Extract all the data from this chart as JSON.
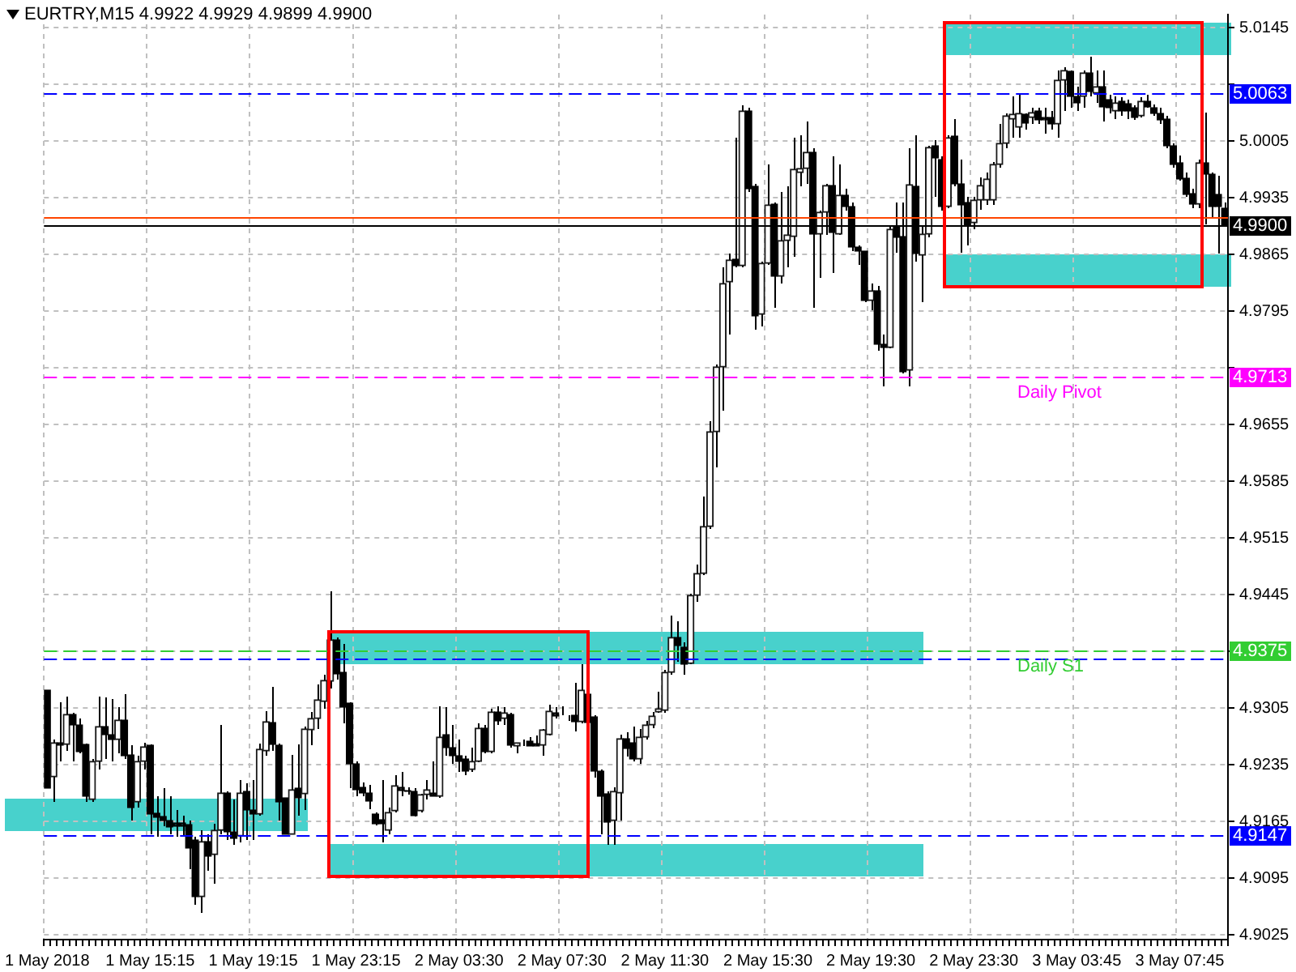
{
  "chart_data": {
    "type": "candlestick",
    "title": "EURTRY,M15 4.9922 4.9929 4.9899 4.9900",
    "categories": [
      "1 May 2018",
      null,
      null,
      null,
      null,
      null,
      null,
      null,
      null,
      null,
      null,
      null,
      null,
      null,
      null,
      null,
      "1 May 15:15",
      null,
      null,
      null,
      null,
      null,
      null,
      null,
      null,
      null,
      null,
      null,
      null,
      null,
      null,
      null,
      "1 May 19:15",
      null,
      null,
      null,
      null,
      null,
      null,
      null,
      null,
      null,
      null,
      null,
      null,
      null,
      null,
      null,
      "1 May 23:15",
      null,
      null,
      null,
      null,
      null,
      null,
      null,
      null,
      null,
      null,
      null,
      null,
      null,
      null,
      null,
      "2 May 03:30",
      null,
      null,
      null,
      null,
      null,
      null,
      null,
      null,
      null,
      null,
      null,
      null,
      null,
      null,
      null,
      "2 May 07:30",
      null,
      null,
      null,
      null,
      null,
      null,
      null,
      null,
      null,
      null,
      null,
      null,
      null,
      null,
      null,
      "2 May 11:30",
      null,
      null,
      null,
      null,
      null,
      null,
      null,
      null,
      null,
      null,
      null,
      null,
      null,
      null,
      null,
      "2 May 15:30",
      null,
      null,
      null,
      null,
      null,
      null,
      null,
      null,
      null,
      null,
      null,
      null,
      null,
      null,
      null,
      "2 May 19:30",
      null,
      null,
      null,
      null,
      null,
      null,
      null,
      null,
      null,
      null,
      null,
      null,
      null,
      null,
      null,
      "2 May 23:30",
      null,
      null,
      null,
      null,
      null,
      null,
      null,
      null,
      null,
      null,
      null,
      null,
      null,
      null,
      null,
      "3 May 03:45",
      null,
      null,
      null,
      null,
      null,
      null,
      null,
      null,
      null,
      null,
      null,
      null,
      null,
      null,
      null,
      "3 May 07:45",
      null,
      null,
      null,
      null,
      null,
      null,
      null
    ],
    "ohlc": [
      [
        4.9327,
        4.9327,
        4.9206,
        4.9206
      ],
      [
        4.922,
        4.9266,
        4.9189,
        4.9262
      ],
      [
        4.9262,
        4.9312,
        4.9239,
        4.9259
      ],
      [
        4.926,
        4.9319,
        4.9252,
        4.9297
      ],
      [
        4.9297,
        4.9299,
        4.9239,
        4.9284
      ],
      [
        4.9284,
        4.9292,
        4.9249,
        4.9251
      ],
      [
        4.926,
        4.9261,
        4.9189,
        4.9196
      ],
      [
        4.9192,
        4.9242,
        4.9189,
        4.9239
      ],
      [
        4.9239,
        4.9319,
        4.9229,
        4.9282
      ],
      [
        4.9282,
        4.9318,
        4.9242,
        4.9272
      ],
      [
        4.9272,
        4.9316,
        4.9239,
        4.9266
      ],
      [
        4.9266,
        4.9306,
        4.9249,
        4.929
      ],
      [
        4.929,
        4.9322,
        4.9242,
        4.9246
      ],
      [
        4.9247,
        4.9259,
        4.9166,
        4.9182
      ],
      [
        4.9189,
        4.9246,
        4.9182,
        4.9239
      ],
      [
        4.9239,
        4.9262,
        4.9229,
        4.9257
      ],
      [
        4.9259,
        4.926,
        4.9149,
        4.9174
      ],
      [
        4.9175,
        4.9196,
        4.9146,
        4.917
      ],
      [
        4.9171,
        4.9206,
        4.9159,
        4.9166
      ],
      [
        4.9166,
        4.9196,
        4.9149,
        4.9158
      ],
      [
        4.9163,
        4.9179,
        4.9146,
        4.9159
      ],
      [
        4.9163,
        4.9172,
        4.9146,
        4.9159
      ],
      [
        4.9161,
        4.9166,
        4.9106,
        4.9132
      ],
      [
        4.9142,
        4.9146,
        4.9062,
        4.9072
      ],
      [
        4.9072,
        4.9154,
        4.9052,
        4.914
      ],
      [
        4.914,
        4.9149,
        4.9104,
        4.9122
      ],
      [
        4.9124,
        4.9162,
        4.9088,
        4.9154
      ],
      [
        4.9154,
        4.9284,
        4.9149,
        4.92
      ],
      [
        4.92,
        4.9202,
        4.9142,
        4.9152
      ],
      [
        4.9152,
        4.9192,
        4.9136,
        4.9144
      ],
      [
        4.9147,
        4.9216,
        4.9139,
        4.92
      ],
      [
        4.9202,
        4.9212,
        4.9142,
        4.9179
      ],
      [
        4.9179,
        4.9216,
        4.9142,
        4.9174
      ],
      [
        4.9174,
        4.9261,
        4.9172,
        4.9254
      ],
      [
        4.9252,
        4.9301,
        4.9246,
        4.9288
      ],
      [
        4.9287,
        4.9331,
        4.9252,
        4.926
      ],
      [
        4.9259,
        4.9261,
        4.9166,
        4.9189
      ],
      [
        4.9194,
        4.9194,
        4.9149,
        4.9149
      ],
      [
        4.9149,
        4.9247,
        4.9149,
        4.9204
      ],
      [
        4.9206,
        4.926,
        4.9172,
        4.9194
      ],
      [
        4.9199,
        4.9282,
        4.9179,
        4.9279
      ],
      [
        4.9278,
        4.93,
        4.9259,
        4.9292
      ],
      [
        4.9292,
        4.9334,
        4.9279,
        4.9315
      ],
      [
        4.9313,
        4.9346,
        4.9304,
        4.9339
      ],
      [
        4.9338,
        4.9449,
        4.9329,
        4.9389
      ],
      [
        4.9389,
        4.9392,
        4.934,
        4.9347
      ],
      [
        4.9349,
        4.9384,
        4.9286,
        4.9306
      ],
      [
        4.9311,
        4.9312,
        4.9206,
        4.9236
      ],
      [
        4.9236,
        4.9239,
        4.9196,
        4.9204
      ],
      [
        4.9207,
        4.9213,
        4.9196,
        4.92
      ],
      [
        4.92,
        4.921,
        4.918,
        4.919
      ],
      [
        4.9174,
        4.9176,
        4.916,
        4.9162
      ],
      [
        4.9167,
        4.9216,
        4.9139,
        4.9162
      ],
      [
        4.9154,
        4.9182,
        4.9149,
        4.9176
      ],
      [
        4.9178,
        4.9222,
        4.9176,
        4.9209
      ],
      [
        4.9207,
        4.9226,
        4.9196,
        4.9203
      ],
      [
        4.9203,
        4.9207,
        4.9198,
        4.9202
      ],
      [
        4.9202,
        4.9206,
        4.9171,
        4.9172
      ],
      [
        4.9178,
        4.9199,
        4.9176,
        4.9198
      ],
      [
        4.9198,
        4.9216,
        4.9192,
        4.9204
      ],
      [
        4.92,
        4.9239,
        4.9196,
        4.9196
      ],
      [
        4.9196,
        4.9307,
        4.9194,
        4.9269
      ],
      [
        4.9272,
        4.9306,
        4.9246,
        4.9256
      ],
      [
        4.9256,
        4.9284,
        4.9236,
        4.9246
      ],
      [
        4.9246,
        4.9266,
        4.9226,
        4.9239
      ],
      [
        4.9242,
        4.9246,
        4.9222,
        4.9227
      ],
      [
        4.9229,
        4.9256,
        4.9226,
        4.9239
      ],
      [
        4.9239,
        4.9286,
        4.9238,
        4.928
      ],
      [
        4.928,
        4.9284,
        4.9249,
        4.9251
      ],
      [
        4.9251,
        4.9304,
        4.9249,
        4.93
      ],
      [
        4.93,
        4.9307,
        4.9284,
        4.9289
      ],
      [
        4.9292,
        4.9306,
        4.9284,
        4.9299
      ],
      [
        4.9297,
        4.9299,
        4.9256,
        4.9259
      ],
      [
        4.9258,
        4.9262,
        4.9249,
        4.9262
      ],
      [
        4.9262,
        4.9266,
        4.9258,
        4.9262
      ],
      [
        4.9264,
        4.9269,
        4.9258,
        4.9258
      ],
      [
        4.9261,
        4.9271,
        4.9258,
        4.9258
      ],
      [
        4.9259,
        4.9279,
        4.9246,
        4.9278
      ],
      [
        4.9272,
        4.9309,
        4.9271,
        4.9301
      ],
      [
        4.9299,
        4.9306,
        4.9292,
        4.9295
      ],
      [
        4.9297,
        4.9307,
        4.9296,
        4.9297
      ],
      [
        4.9296,
        4.9296,
        4.9289,
        4.9296
      ],
      [
        4.9296,
        4.9336,
        4.9276,
        4.9288
      ],
      [
        4.9288,
        4.9359,
        4.9286,
        4.9327
      ],
      [
        4.9322,
        4.9326,
        4.9286,
        4.9287
      ],
      [
        4.9294,
        4.9296,
        4.9219,
        4.9227
      ],
      [
        4.9227,
        4.9229,
        4.9149,
        4.9196
      ],
      [
        4.9199,
        4.9202,
        4.9136,
        4.9164
      ],
      [
        4.9166,
        4.9207,
        4.9136,
        4.9202
      ],
      [
        4.92,
        4.9272,
        4.9166,
        4.9267
      ],
      [
        4.9267,
        4.9275,
        4.9245,
        4.9255
      ],
      [
        4.9262,
        4.9282,
        4.9239,
        4.9242
      ],
      [
        4.9242,
        4.9279,
        4.9236,
        4.9269
      ],
      [
        4.9269,
        4.9289,
        4.9266,
        4.9284
      ],
      [
        4.9284,
        4.93,
        4.928,
        4.9295
      ],
      [
        4.93,
        4.9325,
        4.9299,
        4.9304
      ],
      [
        4.9302,
        4.9352,
        4.9299,
        4.9349
      ],
      [
        4.9349,
        4.9419,
        4.9346,
        4.9392
      ],
      [
        4.9392,
        4.9412,
        4.9362,
        4.9382
      ],
      [
        4.938,
        4.9386,
        4.9346,
        4.9359
      ],
      [
        4.936,
        4.9446,
        4.9359,
        4.9444
      ],
      [
        4.9444,
        4.9482,
        4.9436,
        4.9471
      ],
      [
        4.9471,
        4.9566,
        4.9469,
        4.9529
      ],
      [
        4.9529,
        4.9659,
        4.9526,
        4.9646
      ],
      [
        4.9646,
        4.9729,
        4.9602,
        4.9726
      ],
      [
        4.9726,
        4.9849,
        4.9672,
        4.9829
      ],
      [
        4.9831,
        4.9866,
        4.9766,
        4.9858
      ],
      [
        4.9859,
        5.0009,
        4.9849,
        4.9851
      ],
      [
        4.9851,
        5.0049,
        4.9849,
        5.0042
      ],
      [
        5.0042,
        5.0046,
        4.9942,
        4.9946
      ],
      [
        4.9949,
        4.9952,
        4.9772,
        4.9789
      ],
      [
        4.9791,
        4.9856,
        4.9776,
        4.9854
      ],
      [
        4.9854,
        4.9976,
        4.9852,
        4.9926
      ],
      [
        4.9927,
        4.9929,
        4.9799,
        4.9838
      ],
      [
        4.9838,
        4.9942,
        4.9829,
        4.9882
      ],
      [
        4.9882,
        4.9949,
        4.9849,
        4.9889
      ],
      [
        4.9887,
        5.0009,
        4.9862,
        4.997
      ],
      [
        4.9966,
        5.0012,
        4.9949,
        4.9971
      ],
      [
        4.9971,
        5.0029,
        4.9952,
        4.9991
      ],
      [
        4.9991,
        4.9996,
        4.9799,
        4.989
      ],
      [
        4.989,
        4.9919,
        4.9836,
        4.9917
      ],
      [
        4.9917,
        4.9952,
        4.9889,
        4.995
      ],
      [
        4.995,
        4.9986,
        4.9842,
        4.9892
      ],
      [
        4.989,
        4.9976,
        4.9889,
        4.9938
      ],
      [
        4.9938,
        4.9946,
        4.9919,
        4.9924
      ],
      [
        4.9924,
        4.9929,
        4.9869,
        4.9874
      ],
      [
        4.9874,
        4.9876,
        4.9852,
        4.9869
      ],
      [
        4.9869,
        4.9869,
        4.9806,
        4.9808
      ],
      [
        4.9808,
        4.9829,
        4.9796,
        4.982
      ],
      [
        4.982,
        4.9826,
        4.9746,
        4.9754
      ],
      [
        4.9754,
        4.9766,
        4.9702,
        4.975
      ],
      [
        4.975,
        4.9899,
        4.9749,
        4.9896
      ],
      [
        4.9899,
        4.9929,
        4.9867,
        4.9886
      ],
      [
        4.9887,
        4.9929,
        4.9718,
        4.972
      ],
      [
        4.9722,
        4.9996,
        4.9702,
        4.9951
      ],
      [
        4.9949,
        5.0012,
        4.9856,
        4.9866
      ],
      [
        4.9864,
        4.99,
        4.9806,
        4.989
      ],
      [
        4.989,
        4.9999,
        4.9886,
        4.9997
      ],
      [
        4.9999,
        5.0006,
        4.9936,
        4.9984
      ],
      [
        4.9982,
        4.9986,
        4.9919,
        4.9924
      ],
      [
        4.9924,
        5.0012,
        4.9922,
        5.0009
      ],
      [
        5.0011,
        5.0032,
        4.9949,
        4.9952
      ],
      [
        4.9952,
        4.9982,
        4.9867,
        4.9926
      ],
      [
        4.9929,
        4.9936,
        4.9876,
        4.99
      ],
      [
        4.9904,
        4.9936,
        4.9896,
        4.9932
      ],
      [
        4.9932,
        4.996,
        4.992,
        4.995
      ],
      [
        4.9932,
        4.9966,
        4.9926,
        4.9958
      ],
      [
        4.9932,
        4.9979,
        4.9926,
        4.9976
      ],
      [
        4.9976,
        5.0026,
        4.9972,
        5.0002
      ],
      [
        5.0002,
        5.0039,
        4.9996,
        5.0036
      ],
      [
        5.0032,
        5.006,
        5.0009,
        5.0038
      ],
      [
        5.0022,
        5.0062,
        5.0009,
        5.0039
      ],
      [
        5.0038,
        5.0039,
        5.0019,
        5.0027
      ],
      [
        5.0034,
        5.0046,
        5.0026,
        5.004
      ],
      [
        5.0042,
        5.0046,
        5.0026,
        5.0031
      ],
      [
        5.0034,
        5.0046,
        5.0014,
        5.0031
      ],
      [
        5.0034,
        5.0042,
        5.0019,
        5.0026
      ],
      [
        5.0026,
        5.0092,
        5.0009,
        5.008
      ],
      [
        5.008,
        5.0096,
        5.0042,
        5.0092
      ],
      [
        5.0091,
        5.0092,
        5.0046,
        5.006
      ],
      [
        5.006,
        5.0072,
        5.0042,
        5.0052
      ],
      [
        5.006,
        5.0092,
        5.0046,
        5.0089
      ],
      [
        5.0089,
        5.0109,
        5.006,
        5.0066
      ],
      [
        5.0064,
        5.0092,
        5.0052,
        5.0072
      ],
      [
        5.0072,
        5.0092,
        5.0029,
        5.0047
      ],
      [
        5.0056,
        5.0062,
        5.0039,
        5.0046
      ],
      [
        5.0042,
        5.006,
        5.0032,
        5.0052
      ],
      [
        5.0054,
        5.0059,
        5.0036,
        5.0042
      ],
      [
        5.0051,
        5.0056,
        5.0032,
        5.0042
      ],
      [
        5.0046,
        5.0049,
        5.0031,
        5.0034
      ],
      [
        5.0036,
        5.0059,
        5.0034,
        5.0054
      ],
      [
        5.0054,
        5.0062,
        5.0046,
        5.0047
      ],
      [
        5.0046,
        5.005,
        5.0036,
        5.0039
      ],
      [
        5.0039,
        5.0046,
        5.0026,
        5.0031
      ],
      [
        5.0032,
        5.0036,
        4.9996,
        4.9999
      ],
      [
        4.9999,
        5.0002,
        4.9972,
        4.9976
      ],
      [
        4.9978,
        4.9987,
        4.9956,
        4.9958
      ],
      [
        4.9959,
        4.9966,
        4.9936,
        4.9939
      ],
      [
        4.994,
        4.9946,
        4.9922,
        4.9927
      ],
      [
        4.9927,
        4.9982,
        4.9922,
        4.9978
      ],
      [
        4.9978,
        5.004,
        4.9902,
        4.9964
      ],
      [
        4.9964,
        4.9966,
        4.9909,
        4.9924
      ],
      [
        4.9939,
        4.9962,
        4.9866,
        4.9924
      ],
      [
        4.9922,
        4.9929,
        4.9899,
        4.99
      ]
    ],
    "ylim": [
      4.9019,
      5.0161
    ],
    "yticks": [
      4.9025,
      4.9095,
      4.9165,
      4.9235,
      4.9305,
      {
        "value": 4.9375,
        "label": null
      },
      4.9445,
      4.9515,
      4.9585,
      4.9655,
      {
        "value": 4.9725,
        "label": null
      },
      4.9795,
      4.9865,
      4.9935,
      5.0005,
      {
        "value": 5.0075,
        "label": null
      },
      5.0145
    ],
    "annotations": [
      {
        "text": "5.0063",
        "y": 5.0063
      },
      {
        "text": "4.9900",
        "y": 4.99
      },
      {
        "text": "4.9713",
        "y": 4.9713
      },
      {
        "text": "4.9375",
        "y": 4.9375
      },
      {
        "text": "4.9147",
        "y": 4.9147
      }
    ],
    "grid": true,
    "legend": false,
    "ref_lines": [
      {
        "axis": "y",
        "value": 5.0063,
        "color": "#0000ff",
        "line_style": "dashed"
      },
      {
        "axis": "y",
        "value": 4.991,
        "color": "#ff4500",
        "line_style": "solid"
      },
      {
        "axis": "y",
        "value": 4.99,
        "color": "#000000",
        "line_style": "solid"
      },
      {
        "axis": "y",
        "value": 4.9713,
        "label": "Daily Pivot",
        "color": "#ff00ff",
        "line_style": "dashed"
      },
      {
        "axis": "y",
        "value": 4.9365,
        "color": "#0000ff",
        "line_style": "dashed"
      },
      {
        "axis": "y",
        "value": 4.9375,
        "label": "Daily S1",
        "color": "#32cd32",
        "line_style": "dashed"
      },
      {
        "axis": "y",
        "value": 4.9147,
        "color": "#0000ff",
        "line_style": "dashed"
      }
    ]
  }
}
